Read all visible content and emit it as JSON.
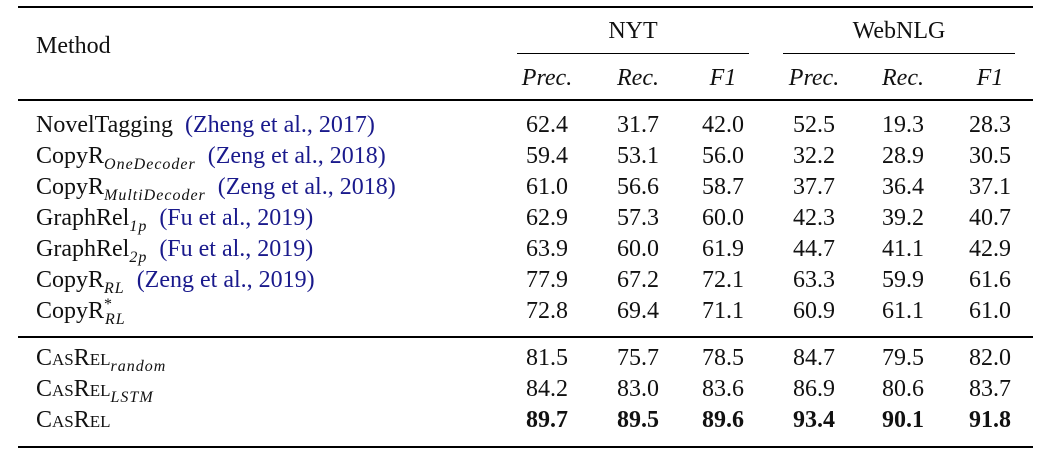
{
  "table": {
    "header": {
      "method": "Method",
      "groups": [
        {
          "name": "NYT",
          "columns": [
            "Prec.",
            "Rec.",
            "F1"
          ]
        },
        {
          "name": "WebNLG",
          "columns": [
            "Prec.",
            "Rec.",
            "F1"
          ]
        }
      ]
    },
    "sections": [
      {
        "rows": [
          {
            "method": {
              "name": "NovelTagging",
              "citation": "(Zheng et al., 2017)"
            },
            "cells": [
              "62.4",
              "31.7",
              "42.0",
              "52.5",
              "19.3",
              "28.3"
            ]
          },
          {
            "method": {
              "name": "CopyR",
              "sub": "OneDecoder",
              "citation": "(Zeng et al., 2018)"
            },
            "cells": [
              "59.4",
              "53.1",
              "56.0",
              "32.2",
              "28.9",
              "30.5"
            ]
          },
          {
            "method": {
              "name": "CopyR",
              "sub": "MultiDecoder",
              "citation": "(Zeng et al., 2018)"
            },
            "cells": [
              "61.0",
              "56.6",
              "58.7",
              "37.7",
              "36.4",
              "37.1"
            ]
          },
          {
            "method": {
              "name": "GraphRel",
              "sub": "1p",
              "citation": "(Fu et al., 2019)"
            },
            "cells": [
              "62.9",
              "57.3",
              "60.0",
              "42.3",
              "39.2",
              "40.7"
            ]
          },
          {
            "method": {
              "name": "GraphRel",
              "sub": "2p",
              "citation": "(Fu et al., 2019)"
            },
            "cells": [
              "63.9",
              "60.0",
              "61.9",
              "44.7",
              "41.1",
              "42.9"
            ]
          },
          {
            "method": {
              "name": "CopyR",
              "sub": "RL",
              "citation": "(Zeng et al., 2019)"
            },
            "cells": [
              "77.9",
              "67.2",
              "72.1",
              "63.3",
              "59.9",
              "61.6"
            ]
          },
          {
            "method": {
              "name": "CopyR",
              "sup": "*",
              "sub": "RL"
            },
            "cells": [
              "72.8",
              "69.4",
              "71.1",
              "60.9",
              "61.1",
              "61.0"
            ]
          }
        ]
      },
      {
        "rows": [
          {
            "method": {
              "name": "CasRel",
              "sub": "random",
              "small_caps": true
            },
            "cells": [
              "81.5",
              "75.7",
              "78.5",
              "84.7",
              "79.5",
              "82.0"
            ]
          },
          {
            "method": {
              "name": "CasRel",
              "sub": "LSTM",
              "small_caps": true
            },
            "cells": [
              "84.2",
              "83.0",
              "83.6",
              "86.9",
              "80.6",
              "83.7"
            ]
          },
          {
            "method": {
              "name": "CasRel",
              "small_caps": true
            },
            "cells": [
              "89.7",
              "89.5",
              "89.6",
              "93.4",
              "90.1",
              "91.8"
            ],
            "bold": true
          }
        ]
      }
    ]
  }
}
